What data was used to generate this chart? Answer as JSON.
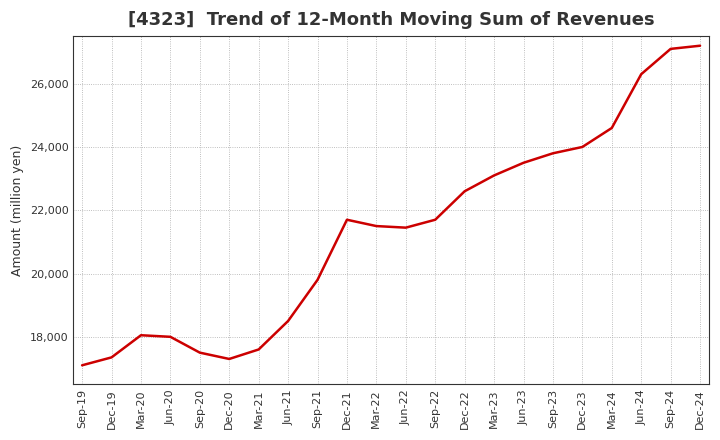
{
  "title": "[4323]  Trend of 12-Month Moving Sum of Revenues",
  "ylabel": "Amount (million yen)",
  "background_color": "#ffffff",
  "line_color": "#cc0000",
  "line_width": 1.8,
  "xlabels": [
    "Sep-19",
    "Dec-19",
    "Mar-20",
    "Jun-20",
    "Sep-20",
    "Dec-20",
    "Mar-21",
    "Jun-21",
    "Sep-21",
    "Dec-21",
    "Mar-22",
    "Jun-22",
    "Sep-22",
    "Dec-22",
    "Mar-23",
    "Jun-23",
    "Sep-23",
    "Dec-23",
    "Mar-24",
    "Jun-24",
    "Sep-24",
    "Dec-24"
  ],
  "values": [
    17100,
    17350,
    18050,
    18000,
    17500,
    17300,
    17600,
    18500,
    19800,
    21700,
    21500,
    21450,
    21700,
    22600,
    23100,
    23500,
    23800,
    24000,
    24600,
    26300,
    27100,
    27200
  ],
  "ylim": [
    16500,
    27500
  ],
  "yticks": [
    18000,
    20000,
    22000,
    24000,
    26000
  ],
  "title_fontsize": 13,
  "tick_fontsize": 8,
  "ylabel_fontsize": 9,
  "title_color": "#333333",
  "tick_color": "#333333",
  "grid_color": "#aaaaaa",
  "spine_color": "#333333"
}
